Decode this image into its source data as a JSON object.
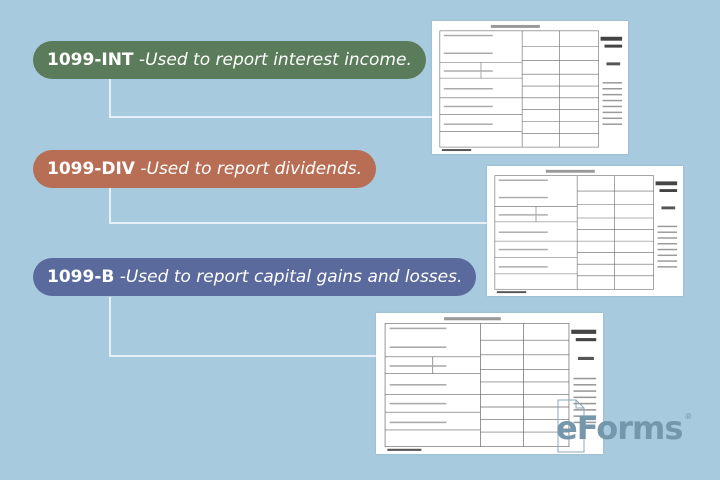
{
  "items": [
    {
      "code": "1099-INT",
      "description": " -Used to report interest income.",
      "color": "#5b7c5a"
    },
    {
      "code": "1099-DIV",
      "description": " -Used to report dividends.",
      "color": "#b76e55"
    },
    {
      "code": "1099-B",
      "description": " -Used to report capital gains and losses.",
      "color": "#5a6a9d"
    }
  ],
  "logo": {
    "text": "eForms",
    "mark": "®"
  },
  "colors": {
    "background": "#a8cadf",
    "connector": "#e6f1f7"
  }
}
